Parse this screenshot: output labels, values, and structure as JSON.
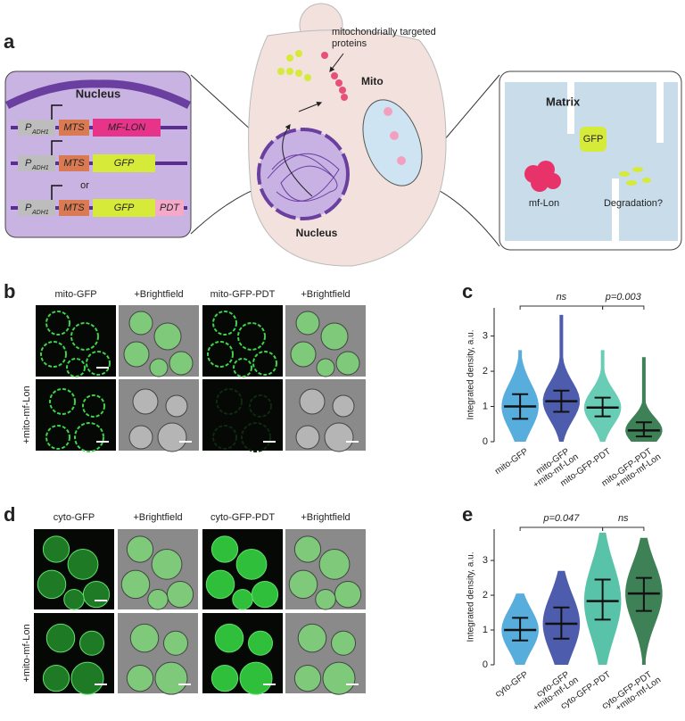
{
  "panels": [
    "a",
    "b",
    "c",
    "d",
    "e"
  ],
  "diagram": {
    "left": {
      "title": "Nucleus",
      "promoter": "P",
      "promoter_sub": "ADH1",
      "mts": "MTS",
      "constructs": [
        "MF-LON",
        "GFP",
        "GFP"
      ],
      "or": "or",
      "tag": "PDT"
    },
    "cell": {
      "targeted": [
        "mitochondrially targeted",
        "proteins"
      ],
      "mito": "Mito",
      "nucleus": "Nucleus"
    },
    "matrix": {
      "title": "Matrix",
      "gfp": "GFP",
      "lon": "mf-Lon",
      "fate": "Degradation?"
    }
  },
  "micrographs": [
    {
      "columns": [
        "mito-GFP",
        "+Brightfield",
        "mito-GFP-PDT",
        "+Brightfield"
      ],
      "row_label": "+mito-mf-Lon"
    },
    {
      "columns": [
        "cyto-GFP",
        "+Brightfield",
        "cyto-GFP-PDT",
        "+Brightfield"
      ],
      "row_label": "+mito-mf-Lon"
    }
  ],
  "chart_data": [
    {
      "type": "dot",
      "y_label": "Integrated density, a.u.",
      "categories": [
        [
          "mito-GFP"
        ],
        [
          "mito-GFP",
          "+mito-mf-Lon"
        ],
        [
          "mito-GFP-PDT"
        ],
        [
          "mito-GFP-PDT",
          "+mito-mf-Lon"
        ]
      ],
      "values": [
        1.0,
        1.15,
        0.97,
        0.32
      ],
      "lower": [
        0.65,
        0.85,
        0.72,
        0.15
      ],
      "upper": [
        1.35,
        1.45,
        1.25,
        0.55
      ],
      "max": [
        2.6,
        3.6,
        2.6,
        2.4
      ],
      "colors": [
        "#3a9fd6",
        "#2e3f9e",
        "#4fc4a8",
        "#1d6b3a"
      ],
      "annotations": [
        "ns",
        "p=0.003"
      ],
      "ylim": [
        0,
        3.8
      ],
      "yticks": [
        0,
        1,
        2,
        3
      ]
    },
    {
      "type": "dot",
      "y_label": "Integrated density, a.u.",
      "categories": [
        [
          "cyto-GFP"
        ],
        [
          "cyto-GFP",
          "+mito-mf-Lon"
        ],
        [
          "cyto-GFP-PDT"
        ],
        [
          "cyto-GFP-PDT",
          "+mito-mf-Lon"
        ]
      ],
      "values": [
        1.0,
        1.18,
        1.83,
        2.05
      ],
      "lower": [
        0.7,
        0.75,
        1.3,
        1.55
      ],
      "upper": [
        1.35,
        1.65,
        2.45,
        2.5
      ],
      "max": [
        2.05,
        2.7,
        3.8,
        3.65
      ],
      "colors": [
        "#3a9fd6",
        "#2e3f9e",
        "#3cb89a",
        "#1d6b3a"
      ],
      "annotations": [
        "p=0.047",
        "ns"
      ],
      "ylim": [
        0,
        3.9
      ],
      "yticks": [
        0,
        1,
        2,
        3
      ]
    }
  ]
}
